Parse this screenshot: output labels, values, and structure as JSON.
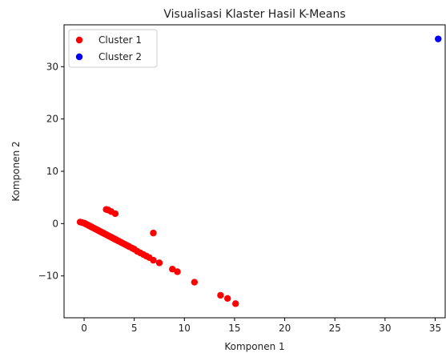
{
  "chart_data": {
    "type": "scatter",
    "title": "Visualisasi Klaster Hasil K-Means",
    "xlabel": "Komponen 1",
    "ylabel": "Komponen 2",
    "xlim": [
      -2.0,
      36.0
    ],
    "ylim": [
      -18.0,
      38.0
    ],
    "xticks": [
      0,
      5,
      10,
      15,
      20,
      25,
      30,
      35
    ],
    "yticks": [
      -10,
      0,
      10,
      20,
      30
    ],
    "grid": false,
    "legend": "top-left",
    "series": [
      {
        "name": "Cluster 1",
        "color": "#ff0000",
        "points": [
          [
            -0.4,
            0.3
          ],
          [
            -0.2,
            0.2
          ],
          [
            0.0,
            0.1
          ],
          [
            0.1,
            0.0
          ],
          [
            0.2,
            -0.1
          ],
          [
            0.3,
            -0.2
          ],
          [
            0.4,
            -0.3
          ],
          [
            0.5,
            -0.4
          ],
          [
            0.6,
            -0.5
          ],
          [
            0.7,
            -0.6
          ],
          [
            0.8,
            -0.7
          ],
          [
            0.9,
            -0.8
          ],
          [
            1.0,
            -0.9
          ],
          [
            1.1,
            -1.0
          ],
          [
            1.2,
            -1.1
          ],
          [
            1.3,
            -1.2
          ],
          [
            1.4,
            -1.3
          ],
          [
            1.5,
            -1.4
          ],
          [
            1.6,
            -1.5
          ],
          [
            1.7,
            -1.6
          ],
          [
            1.8,
            -1.7
          ],
          [
            1.9,
            -1.8
          ],
          [
            2.0,
            -1.9
          ],
          [
            2.1,
            -2.0
          ],
          [
            2.2,
            -2.1
          ],
          [
            2.3,
            -2.2
          ],
          [
            2.4,
            -2.3
          ],
          [
            2.5,
            -2.4
          ],
          [
            2.6,
            -2.5
          ],
          [
            2.7,
            -2.6
          ],
          [
            2.8,
            -2.7
          ],
          [
            2.9,
            -2.8
          ],
          [
            3.0,
            -2.9
          ],
          [
            3.1,
            -3.0
          ],
          [
            3.2,
            -3.1
          ],
          [
            3.3,
            -3.2
          ],
          [
            3.4,
            -3.3
          ],
          [
            3.5,
            -3.4
          ],
          [
            3.7,
            -3.6
          ],
          [
            3.9,
            -3.8
          ],
          [
            4.1,
            -4.0
          ],
          [
            4.3,
            -4.2
          ],
          [
            4.5,
            -4.4
          ],
          [
            4.8,
            -4.7
          ],
          [
            5.0,
            -4.9
          ],
          [
            5.3,
            -5.3
          ],
          [
            5.6,
            -5.6
          ],
          [
            5.9,
            -5.9
          ],
          [
            6.2,
            -6.2
          ],
          [
            6.5,
            -6.5
          ],
          [
            6.9,
            -7.0
          ],
          [
            7.5,
            -7.5
          ],
          [
            8.8,
            -8.7
          ],
          [
            9.3,
            -9.2
          ],
          [
            11.0,
            -11.2
          ],
          [
            13.6,
            -13.7
          ],
          [
            14.3,
            -14.3
          ],
          [
            15.1,
            -15.3
          ],
          [
            2.2,
            2.7
          ],
          [
            2.4,
            2.6
          ],
          [
            2.7,
            2.3
          ],
          [
            3.1,
            1.9
          ],
          [
            6.9,
            -1.8
          ]
        ]
      },
      {
        "name": "Cluster 2",
        "color": "#0000ff",
        "points": [
          [
            35.3,
            35.3
          ]
        ]
      }
    ]
  }
}
